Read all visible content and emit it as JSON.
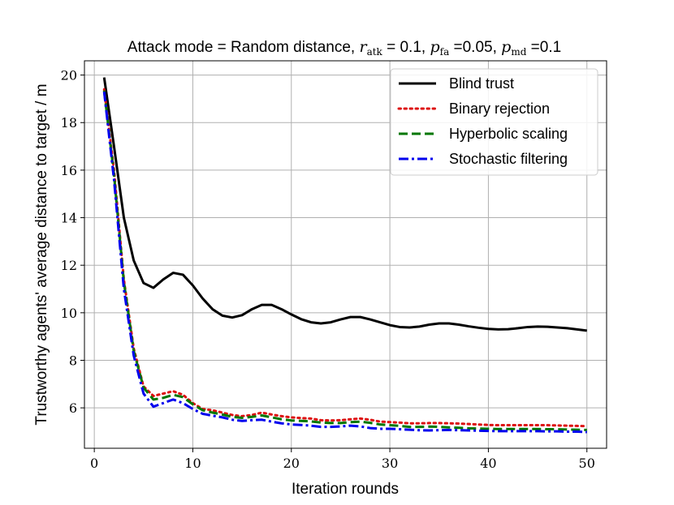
{
  "chart_data": {
    "type": "line",
    "title_prefix": "Attack mode = Random distance, ",
    "title_params": [
      {
        "symbol": "r",
        "subscript": "atk",
        "value": " = 0.1, "
      },
      {
        "symbol": "p",
        "subscript": "fa",
        "value": " =0.05, "
      },
      {
        "symbol": "p",
        "subscript": "md",
        "value": " =0.1"
      }
    ],
    "xlabel": "Iteration rounds",
    "ylabel": "Trustworthy agents' average distance to target / m",
    "xlim": [
      -1,
      52
    ],
    "ylim": [
      4.3,
      20.6
    ],
    "xticks": [
      0,
      10,
      20,
      30,
      40,
      50
    ],
    "yticks": [
      6,
      8,
      10,
      12,
      14,
      16,
      18,
      20
    ],
    "grid": true,
    "legend_position": "top-right",
    "x": [
      1,
      2,
      3,
      4,
      5,
      6,
      7,
      8,
      9,
      10,
      11,
      12,
      13,
      14,
      15,
      16,
      17,
      18,
      19,
      20,
      21,
      22,
      23,
      24,
      25,
      26,
      27,
      28,
      29,
      30,
      31,
      32,
      33,
      34,
      35,
      36,
      37,
      38,
      39,
      40,
      41,
      42,
      43,
      44,
      45,
      46,
      47,
      48,
      49,
      50
    ],
    "series": [
      {
        "name": "Blind trust",
        "color": "#000000",
        "dash": "solid",
        "values": [
          19.9,
          17.0,
          14.0,
          12.2,
          11.25,
          11.05,
          11.4,
          11.68,
          11.6,
          11.15,
          10.6,
          10.15,
          9.88,
          9.8,
          9.9,
          10.15,
          10.33,
          10.33,
          10.15,
          9.93,
          9.73,
          9.6,
          9.55,
          9.6,
          9.72,
          9.82,
          9.82,
          9.72,
          9.6,
          9.48,
          9.4,
          9.38,
          9.42,
          9.5,
          9.55,
          9.55,
          9.5,
          9.43,
          9.37,
          9.32,
          9.3,
          9.31,
          9.35,
          9.4,
          9.42,
          9.41,
          9.38,
          9.35,
          9.3,
          9.25
        ]
      },
      {
        "name": "Binary rejection",
        "color": "#dd1111",
        "dash": "dotted",
        "values": [
          19.4,
          16.0,
          11.4,
          8.5,
          6.9,
          6.5,
          6.6,
          6.7,
          6.55,
          6.2,
          5.95,
          5.9,
          5.8,
          5.7,
          5.65,
          5.7,
          5.8,
          5.72,
          5.65,
          5.6,
          5.57,
          5.55,
          5.48,
          5.47,
          5.48,
          5.52,
          5.55,
          5.5,
          5.42,
          5.4,
          5.38,
          5.35,
          5.35,
          5.36,
          5.36,
          5.35,
          5.34,
          5.32,
          5.3,
          5.28,
          5.27,
          5.27,
          5.27,
          5.27,
          5.27,
          5.27,
          5.26,
          5.25,
          5.24,
          5.23
        ]
      },
      {
        "name": "Hyperbolic scaling",
        "color": "#007700",
        "dash": "dashed",
        "values": [
          19.35,
          15.8,
          11.3,
          8.4,
          6.85,
          6.35,
          6.42,
          6.55,
          6.45,
          6.15,
          5.9,
          5.8,
          5.72,
          5.62,
          5.58,
          5.62,
          5.68,
          5.6,
          5.52,
          5.47,
          5.45,
          5.43,
          5.38,
          5.36,
          5.36,
          5.4,
          5.42,
          5.37,
          5.3,
          5.27,
          5.24,
          5.2,
          5.2,
          5.21,
          5.2,
          5.18,
          5.16,
          5.14,
          5.13,
          5.12,
          5.11,
          5.11,
          5.11,
          5.11,
          5.11,
          5.1,
          5.1,
          5.09,
          5.08,
          5.07
        ]
      },
      {
        "name": "Stochastic filtering",
        "color": "#0000ee",
        "dash": "dashdot",
        "values": [
          19.3,
          15.6,
          11.0,
          8.2,
          6.6,
          6.05,
          6.2,
          6.35,
          6.2,
          5.95,
          5.75,
          5.67,
          5.6,
          5.5,
          5.45,
          5.48,
          5.5,
          5.42,
          5.35,
          5.3,
          5.28,
          5.25,
          5.2,
          5.2,
          5.22,
          5.25,
          5.22,
          5.15,
          5.12,
          5.12,
          5.1,
          5.08,
          5.06,
          5.05,
          5.06,
          5.07,
          5.06,
          5.05,
          5.04,
          5.03,
          5.02,
          5.02,
          5.02,
          5.02,
          5.02,
          5.01,
          5.01,
          5.0,
          5.0,
          4.98
        ]
      }
    ]
  }
}
